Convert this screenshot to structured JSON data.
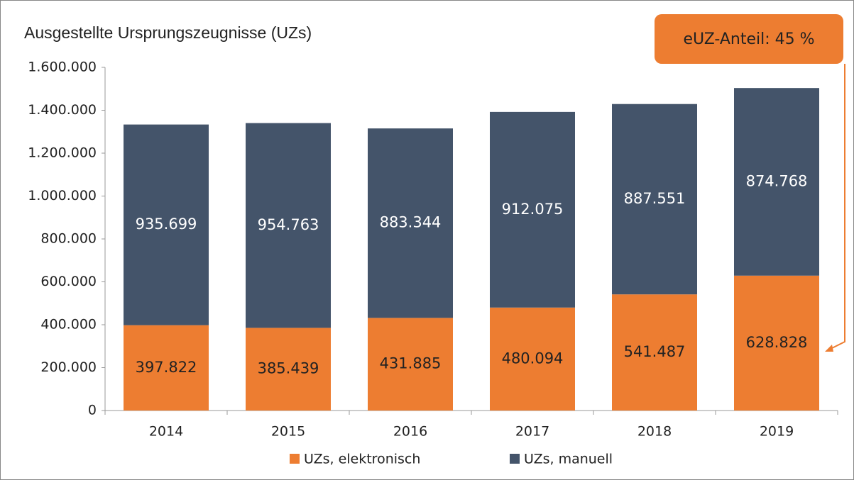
{
  "chart_data": {
    "type": "stacked_bar",
    "title": "Ausgestellte Ursprungszeugnisse (UZs)",
    "annotation": "eUZ-Anteil: 45 %",
    "categories": [
      "2014",
      "2015",
      "2016",
      "2017",
      "2018",
      "2019"
    ],
    "series": [
      {
        "name": "UZs, elektronisch",
        "color": "#ed7d31",
        "label_color": "#222222",
        "values": [
          397822,
          385439,
          431885,
          480094,
          541487,
          628828
        ],
        "value_labels": [
          "397.822",
          "385.439",
          "431.885",
          "480.094",
          "541.487",
          "628.828"
        ]
      },
      {
        "name": "UZs, manuell",
        "color": "#44546a",
        "label_color": "#ffffff",
        "values": [
          935699,
          954763,
          883344,
          912075,
          887551,
          874768
        ],
        "value_labels": [
          "935.699",
          "954.763",
          "883.344",
          "912.075",
          "887.551",
          "874.768"
        ]
      }
    ],
    "ylim": [
      0,
      1600000
    ],
    "yticks": [
      0,
      {
        "value": 200000,
        "label": "200.000"
      },
      {
        "value": 400000,
        "label": "400.000"
      },
      {
        "value": 600000,
        "label": "600.000"
      },
      {
        "value": 800000,
        "label": "800.000"
      },
      {
        "value": 1000000,
        "label": "1.000.000"
      },
      {
        "value": 1200000,
        "label": "1.200.000"
      },
      {
        "value": 1400000,
        "label": "1.400.000"
      },
      {
        "value": 1600000,
        "label": "1.600.000"
      }
    ],
    "grid": false,
    "legend": "bottom"
  }
}
